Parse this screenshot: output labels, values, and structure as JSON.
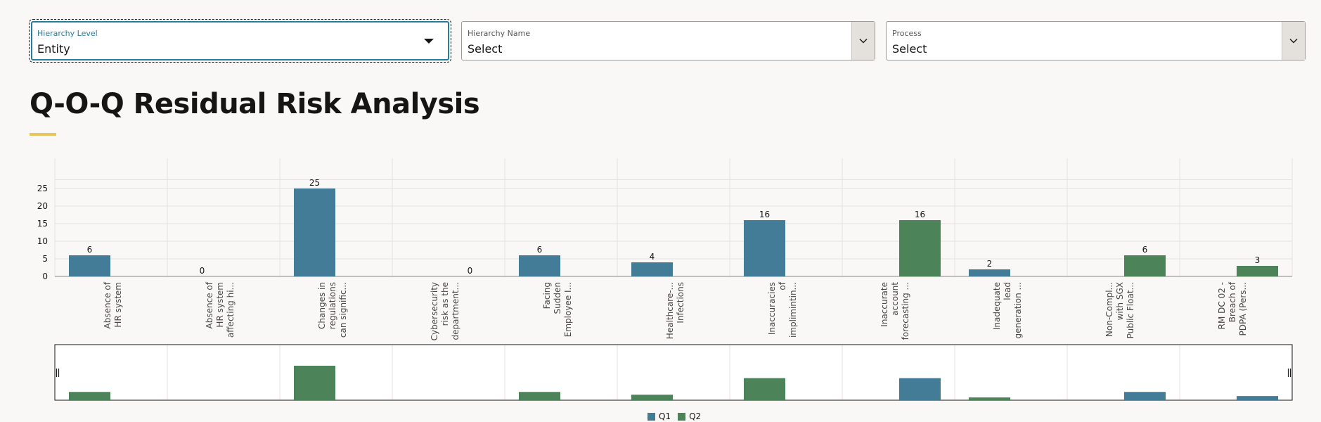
{
  "filters": {
    "hierarchy_level": {
      "label": "Hierarchy Level",
      "value": "Entity"
    },
    "hierarchy_name": {
      "label": "Hierarchy Name",
      "value": "Select"
    },
    "process": {
      "label": "Process",
      "value": "Select"
    }
  },
  "page_title": "Q-O-Q Residual Risk Analysis",
  "colors": {
    "q1": "#437c96",
    "q2": "#4d8359",
    "grid": "#e4e2df",
    "axis": "#8a8783"
  },
  "chart_data": {
    "type": "bar",
    "title": "",
    "xlabel": "",
    "ylabel": "",
    "ylim": [
      0,
      30
    ],
    "yticks": [
      0,
      5,
      10,
      15,
      20,
      25
    ],
    "categories": [
      [
        "Absence of",
        "HR system"
      ],
      [
        "Absence of",
        "HR system",
        "affecting hi..."
      ],
      [
        "Changes in",
        "regulations",
        "can signific..."
      ],
      [
        "Cybersecurity",
        "risk as the",
        "department..."
      ],
      [
        "Facing",
        "Sudden",
        "Employee I..."
      ],
      [
        "Healthcare-...",
        "Infections"
      ],
      [
        "Inaccuracies",
        "of",
        "implimintin..."
      ],
      [
        "Inaccurate",
        "account",
        "forecasting ..."
      ],
      [
        "Inadequate",
        "lead",
        "generation ..."
      ],
      [
        "Non-Compl...",
        "with SGX",
        "Public Float..."
      ],
      [
        "RM DC 02 -",
        "Breach of",
        "PDPA (Pers..."
      ]
    ],
    "series": [
      {
        "name": "Q1",
        "values": [
          6,
          0,
          25,
          null,
          6,
          4,
          16,
          null,
          2,
          null,
          null
        ]
      },
      {
        "name": "Q2",
        "values": [
          null,
          null,
          null,
          0,
          null,
          null,
          null,
          16,
          null,
          6,
          3
        ]
      }
    ],
    "legend": {
      "position": "bottom-center",
      "items": [
        "Q1",
        "Q2"
      ]
    }
  }
}
